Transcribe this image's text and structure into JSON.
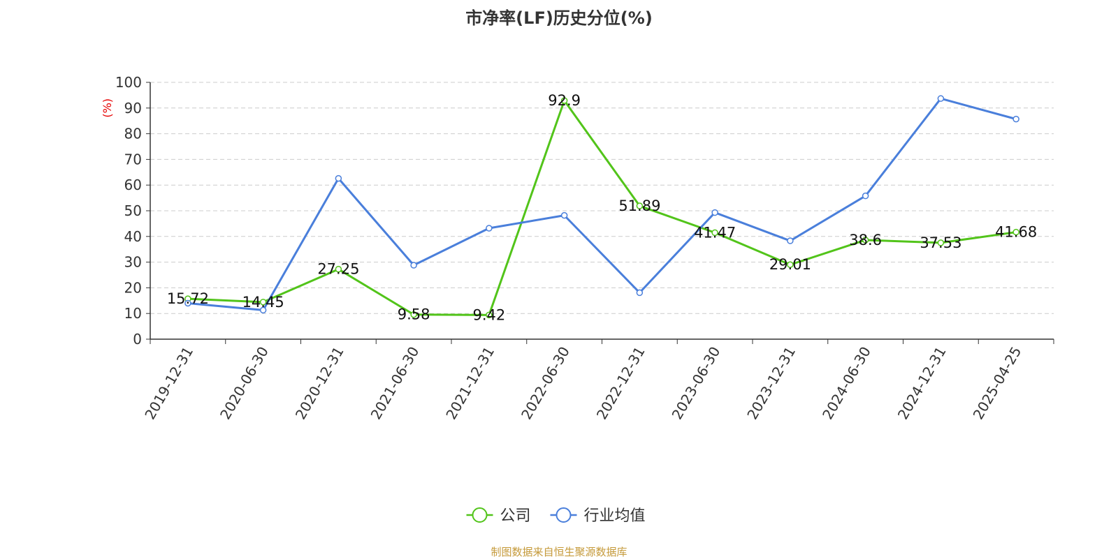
{
  "chart_data": {
    "type": "line",
    "title": "市净率(LF)历史分位(%)",
    "ylabel": "(%)",
    "xlabel": "",
    "ylim": [
      0,
      100
    ],
    "yticks": [
      "0",
      "10",
      "20",
      "30",
      "40",
      "50",
      "60",
      "70",
      "80",
      "90",
      "100"
    ],
    "grid": true,
    "legend_position": "bottom-center",
    "categories": [
      "2019-12-31",
      "2020-06-30",
      "2020-12-31",
      "2021-06-30",
      "2021-12-31",
      "2022-06-30",
      "2022-12-31",
      "2023-06-30",
      "2023-12-31",
      "2024-06-30",
      "2024-12-31",
      "2025-04-25"
    ],
    "series": [
      {
        "name": "公司",
        "color": "#52c41a",
        "values": [
          15.72,
          14.45,
          27.25,
          9.58,
          9.42,
          92.9,
          51.89,
          41.47,
          29.01,
          38.6,
          37.53,
          41.68
        ],
        "labels": [
          "15.72",
          "14.45",
          "27.25",
          "9.58",
          "9.42",
          "92.9",
          "51.89",
          "41.47",
          "29.01",
          "38.6",
          "37.53",
          "41.68"
        ]
      },
      {
        "name": "行业均值",
        "color": "#4a7fdb",
        "values": [
          14.0,
          11.3,
          62.6,
          28.8,
          43.2,
          48.2,
          18.1,
          49.3,
          38.3,
          55.8,
          93.7,
          85.7
        ]
      }
    ]
  },
  "footer": {
    "source": "制图数据来自恒生聚源数据库"
  }
}
